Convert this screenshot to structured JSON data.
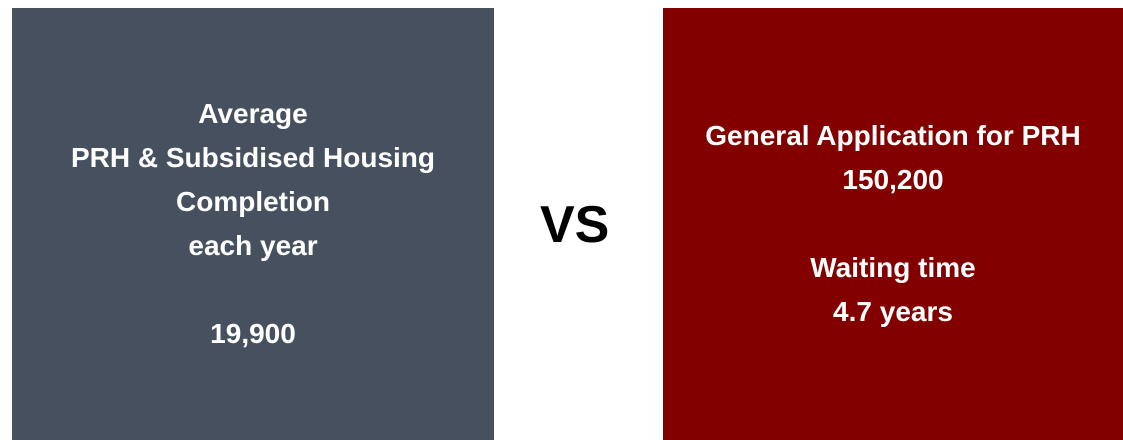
{
  "left": {
    "lines": [
      "Average",
      "PRH & Subsidised Housing",
      "Completion",
      "each year"
    ],
    "value": "19,900"
  },
  "separator": "VS",
  "right": {
    "lines": [
      "General Application for PRH",
      "150,200"
    ],
    "lines2": [
      "Waiting time",
      "4.7 years"
    ]
  }
}
